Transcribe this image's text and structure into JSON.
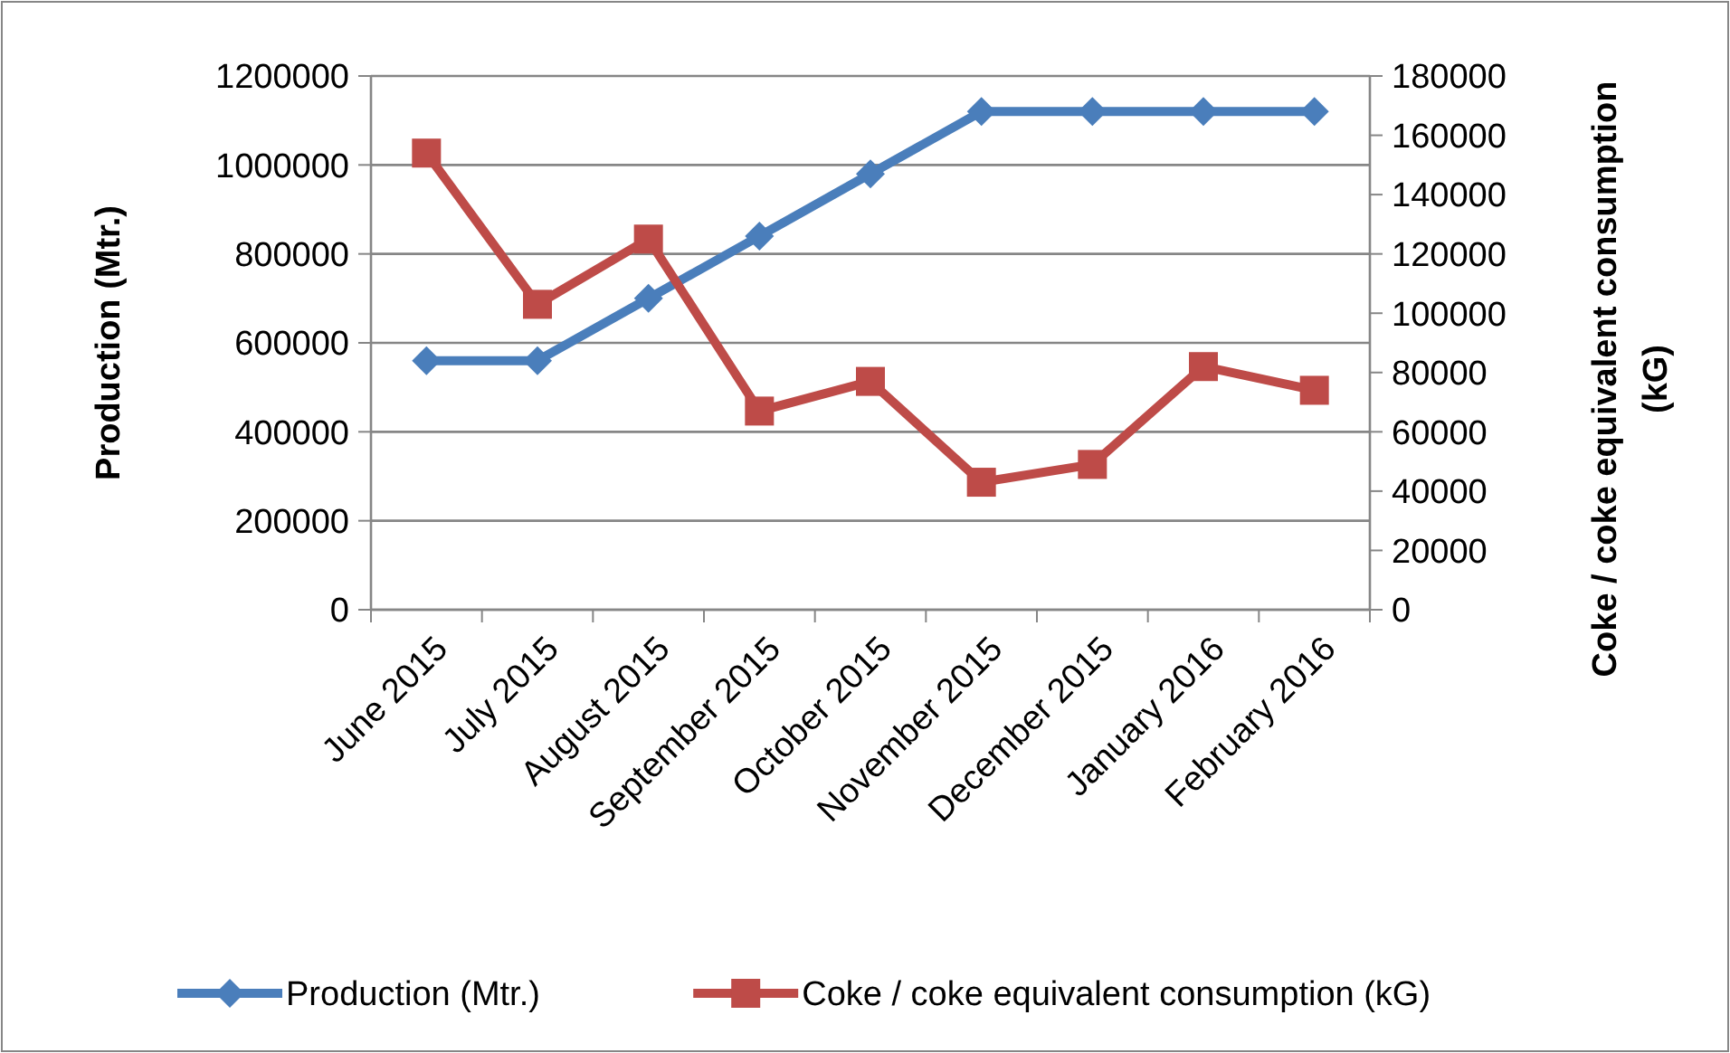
{
  "chart_data": {
    "type": "line",
    "xlabel": null,
    "ylabel": "Production (Mtr.)",
    "y2label": "Coke / coke equivalent consumption (kG)",
    "categories": [
      "June 2015",
      "July 2015",
      "August 2015",
      "September 2015",
      "October 2015",
      "November 2015",
      "December 2015",
      "January 2016",
      "February 2016"
    ],
    "series": [
      {
        "name": "Production (Mtr.)",
        "color": "#4a7ebb",
        "marker": "diamond",
        "values": [
          560000,
          560000,
          700000,
          840000,
          980000,
          1120000,
          1120000,
          1120000,
          1120000
        ]
      },
      {
        "name": "Coke / coke equivalent consumption (kG)",
        "color": "#be4b48",
        "marker": "square",
        "axis": "y2",
        "values": [
          154000,
          103000,
          125000,
          67000,
          77000,
          43000,
          49000,
          82000,
          74000
        ]
      }
    ],
    "ylim": [
      0,
      1200000
    ],
    "yticks": [
      0,
      200000,
      400000,
      600000,
      800000,
      1000000,
      1200000
    ],
    "y2lim": [
      0,
      180000
    ],
    "y2ticks": [
      0,
      20000,
      40000,
      60000,
      80000,
      100000,
      120000,
      140000,
      160000,
      180000
    ],
    "grid": "y",
    "legend": "bottom",
    "line_style": "solid"
  }
}
